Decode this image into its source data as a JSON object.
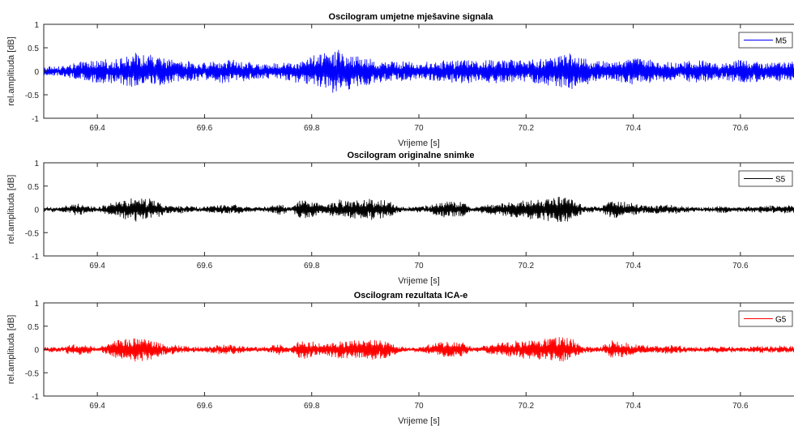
{
  "chart_data": [
    {
      "type": "line",
      "title": "Oscilogram umjetne mješavine signala",
      "xlabel": "Vrijeme [s]",
      "ylabel": "rel.amplituda [dB]",
      "xlim": [
        69.3,
        70.7
      ],
      "ylim": [
        -1,
        1
      ],
      "xticks": [
        "69.4",
        "69.6",
        "69.8",
        "70",
        "70.2",
        "70.4",
        "70.6"
      ],
      "yticks": [
        "1",
        "0.5",
        "0",
        "-0.5",
        "-1"
      ],
      "grid": false,
      "legend_position": "top-right",
      "color": "#0000ff",
      "series": [
        {
          "name": "M5",
          "envelope_x": [
            69.3,
            69.34,
            69.38,
            69.42,
            69.46,
            69.48,
            69.52,
            69.56,
            69.6,
            69.64,
            69.68,
            69.72,
            69.76,
            69.8,
            69.84,
            69.88,
            69.92,
            69.96,
            70.0,
            70.04,
            70.08,
            70.12,
            70.16,
            70.2,
            70.24,
            70.28,
            70.32,
            70.36,
            70.4,
            70.44,
            70.48,
            70.52,
            70.56,
            70.6,
            70.64,
            70.7
          ],
          "envelope_amp": [
            0.1,
            0.12,
            0.22,
            0.25,
            0.32,
            0.42,
            0.3,
            0.22,
            0.18,
            0.26,
            0.2,
            0.15,
            0.2,
            0.32,
            0.48,
            0.36,
            0.25,
            0.22,
            0.18,
            0.22,
            0.26,
            0.22,
            0.28,
            0.22,
            0.32,
            0.4,
            0.25,
            0.2,
            0.3,
            0.22,
            0.2,
            0.24,
            0.18,
            0.25,
            0.22,
            0.2
          ]
        }
      ]
    },
    {
      "type": "line",
      "title": "Oscilogram originalne snimke",
      "xlabel": "Vrijeme [s]",
      "ylabel": "rel.amplituda [dB]",
      "xlim": [
        69.3,
        70.7
      ],
      "ylim": [
        -1,
        1
      ],
      "xticks": [
        "69.4",
        "69.6",
        "69.8",
        "70",
        "70.2",
        "70.4",
        "70.6"
      ],
      "yticks": [
        "1",
        "0.5",
        "0",
        "-0.5",
        "-1"
      ],
      "grid": false,
      "legend_position": "top-right",
      "color": "#000000",
      "series": [
        {
          "name": "S5",
          "envelope_x": [
            69.3,
            69.33,
            69.36,
            69.38,
            69.4,
            69.42,
            69.44,
            69.47,
            69.5,
            69.53,
            69.56,
            69.58,
            69.6,
            69.63,
            69.66,
            69.69,
            69.72,
            69.74,
            69.76,
            69.78,
            69.8,
            69.82,
            69.85,
            69.88,
            69.91,
            69.94,
            69.96,
            69.98,
            70.0,
            70.02,
            70.05,
            70.08,
            70.1,
            70.12,
            70.16,
            70.2,
            70.23,
            70.26,
            70.28,
            70.31,
            70.34,
            70.36,
            70.38,
            70.41,
            70.44,
            70.47,
            70.5,
            70.53,
            70.56,
            70.6,
            70.64,
            70.7
          ],
          "envelope_amp": [
            0.05,
            0.05,
            0.12,
            0.1,
            0.04,
            0.12,
            0.2,
            0.26,
            0.22,
            0.1,
            0.08,
            0.05,
            0.05,
            0.1,
            0.09,
            0.04,
            0.06,
            0.12,
            0.04,
            0.22,
            0.18,
            0.1,
            0.2,
            0.2,
            0.22,
            0.2,
            0.08,
            0.04,
            0.06,
            0.1,
            0.18,
            0.16,
            0.04,
            0.08,
            0.16,
            0.2,
            0.22,
            0.28,
            0.26,
            0.06,
            0.05,
            0.2,
            0.16,
            0.1,
            0.08,
            0.1,
            0.06,
            0.04,
            0.07,
            0.05,
            0.07,
            0.08
          ]
        }
      ]
    },
    {
      "type": "line",
      "title": "Oscilogram rezultata ICA-e",
      "xlabel": "Vrijeme [s]",
      "ylabel": "rel.amplituda [dB]",
      "xlim": [
        69.3,
        70.7
      ],
      "ylim": [
        -1,
        1
      ],
      "xticks": [
        "69.4",
        "69.6",
        "69.8",
        "70",
        "70.2",
        "70.4",
        "70.6"
      ],
      "yticks": [
        "1",
        "0.5",
        "0",
        "-0.5",
        "-1"
      ],
      "grid": false,
      "legend_position": "top-right",
      "color": "#ff0000",
      "series": [
        {
          "name": "G5",
          "envelope_x": [
            69.3,
            69.33,
            69.36,
            69.38,
            69.4,
            69.42,
            69.44,
            69.47,
            69.5,
            69.53,
            69.56,
            69.58,
            69.6,
            69.63,
            69.66,
            69.69,
            69.72,
            69.74,
            69.76,
            69.78,
            69.8,
            69.82,
            69.85,
            69.88,
            69.91,
            69.94,
            69.96,
            69.98,
            70.0,
            70.02,
            70.05,
            70.08,
            70.1,
            70.12,
            70.16,
            70.2,
            70.23,
            70.26,
            70.28,
            70.31,
            70.34,
            70.36,
            70.38,
            70.41,
            70.44,
            70.47,
            70.5,
            70.53,
            70.56,
            70.6,
            70.64,
            70.7
          ],
          "envelope_amp": [
            0.05,
            0.05,
            0.12,
            0.1,
            0.04,
            0.12,
            0.2,
            0.26,
            0.22,
            0.1,
            0.08,
            0.05,
            0.05,
            0.1,
            0.09,
            0.04,
            0.06,
            0.12,
            0.04,
            0.22,
            0.18,
            0.1,
            0.2,
            0.2,
            0.22,
            0.2,
            0.08,
            0.04,
            0.06,
            0.1,
            0.18,
            0.16,
            0.04,
            0.08,
            0.16,
            0.2,
            0.22,
            0.28,
            0.26,
            0.06,
            0.05,
            0.2,
            0.16,
            0.1,
            0.08,
            0.1,
            0.06,
            0.04,
            0.07,
            0.05,
            0.07,
            0.08
          ]
        }
      ]
    }
  ]
}
